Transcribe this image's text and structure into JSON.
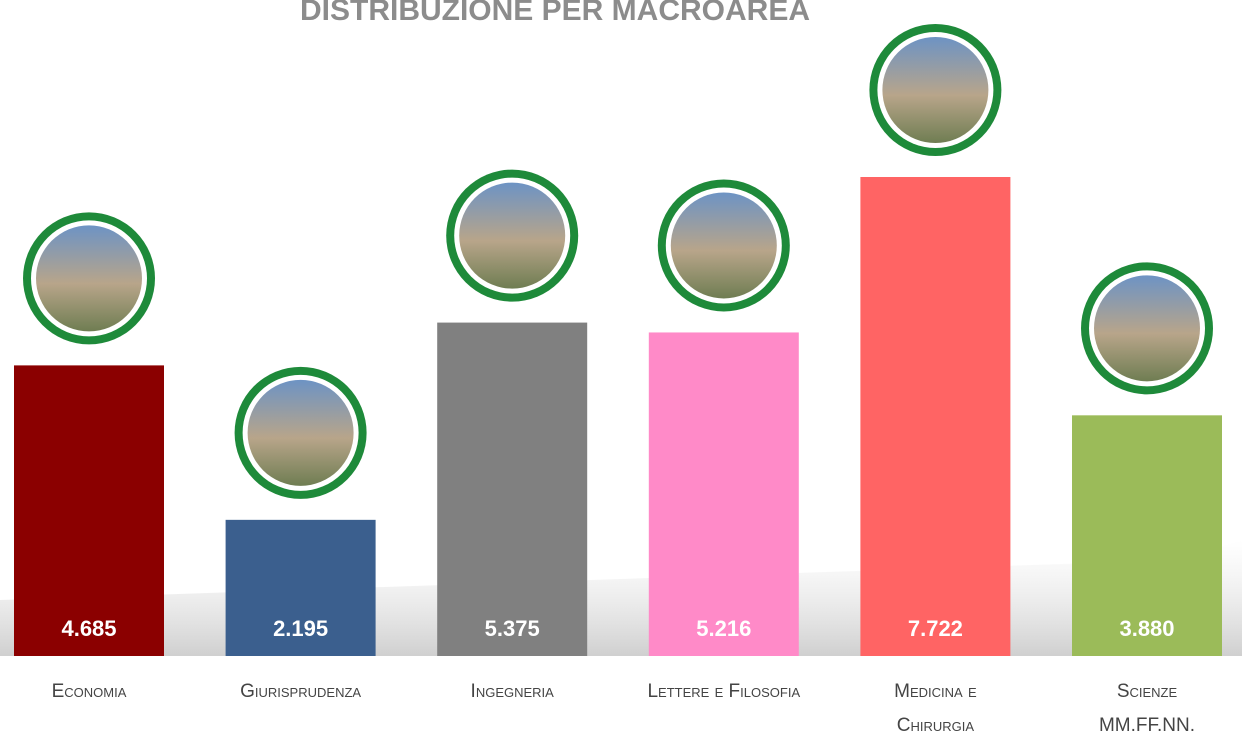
{
  "chart_data": {
    "type": "bar",
    "title": "DISTRIBUZIONE PER MACROAREA",
    "categories": [
      "Economia",
      "Giurisprudenza",
      "Ingegneria",
      "Lettere e Filosofia",
      [
        "Medicina e",
        "Chirurgia"
      ],
      [
        "Scienze",
        "MM.FF.NN."
      ]
    ],
    "values": [
      4685,
      2195,
      5375,
      5216,
      7722,
      3880
    ],
    "value_labels": [
      "4.685",
      "2.195",
      "5.375",
      "5.216",
      "7.722",
      "3.880"
    ],
    "colors": [
      "#8b0000",
      "#3b5f8e",
      "#808080",
      "#ff8ac8",
      "#ff6464",
      "#9bbb59"
    ]
  }
}
